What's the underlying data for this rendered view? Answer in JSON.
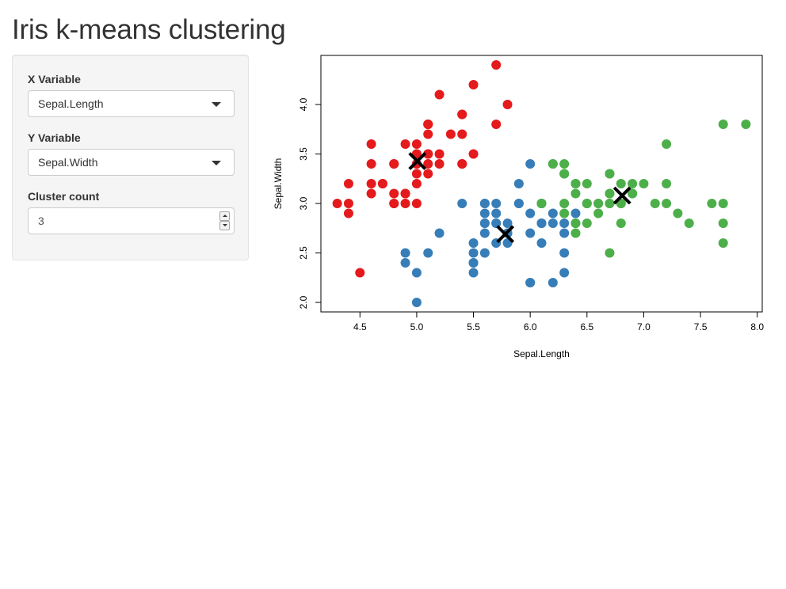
{
  "app": {
    "title": "Iris k-means clustering"
  },
  "sidebar": {
    "x_variable": {
      "label": "X Variable",
      "selected": "Sepal.Length"
    },
    "y_variable": {
      "label": "Y Variable",
      "selected": "Sepal.Width"
    },
    "cluster_count": {
      "label": "Cluster count",
      "value": "3"
    }
  },
  "colors": {
    "cluster_1": "#E41A1C",
    "cluster_2": "#377EB8",
    "cluster_3": "#4DAF4A",
    "centers": "#000000"
  },
  "chart_data": {
    "type": "scatter",
    "title": "",
    "xlabel": "Sepal.Length",
    "ylabel": "Sepal.Width",
    "xlim": [
      4.3,
      7.9
    ],
    "ylim": [
      2.0,
      4.4
    ],
    "x_ticks": [
      4.5,
      5.0,
      5.5,
      6.0,
      6.5,
      7.0,
      7.5,
      8.0
    ],
    "x_tick_labels": [
      "4.5",
      "5.0",
      "5.5",
      "6.0",
      "6.5",
      "7.0",
      "7.5",
      "8.0"
    ],
    "y_ticks": [
      2.0,
      2.5,
      3.0,
      3.5,
      4.0
    ],
    "y_tick_labels": [
      "2.0",
      "2.5",
      "3.0",
      "3.5",
      "4.0"
    ],
    "grid": false,
    "legend": "none",
    "series": [
      {
        "color": "#E41A1C",
        "points": [
          [
            5.1,
            3.5
          ],
          [
            4.9,
            3.0
          ],
          [
            4.7,
            3.2
          ],
          [
            4.6,
            3.1
          ],
          [
            5.0,
            3.6
          ],
          [
            5.4,
            3.9
          ],
          [
            4.6,
            3.4
          ],
          [
            5.0,
            3.4
          ],
          [
            4.4,
            2.9
          ],
          [
            4.9,
            3.1
          ],
          [
            5.4,
            3.7
          ],
          [
            4.8,
            3.4
          ],
          [
            4.8,
            3.0
          ],
          [
            4.3,
            3.0
          ],
          [
            5.8,
            4.0
          ],
          [
            5.7,
            4.4
          ],
          [
            5.4,
            3.9
          ],
          [
            5.1,
            3.5
          ],
          [
            5.7,
            3.8
          ],
          [
            5.1,
            3.8
          ],
          [
            5.4,
            3.4
          ],
          [
            5.1,
            3.7
          ],
          [
            4.6,
            3.6
          ],
          [
            5.1,
            3.3
          ],
          [
            4.8,
            3.4
          ],
          [
            5.0,
            3.0
          ],
          [
            5.0,
            3.4
          ],
          [
            5.2,
            3.5
          ],
          [
            5.2,
            3.4
          ],
          [
            4.7,
            3.2
          ],
          [
            4.8,
            3.1
          ],
          [
            5.4,
            3.4
          ],
          [
            5.2,
            4.1
          ],
          [
            5.5,
            4.2
          ],
          [
            4.9,
            3.1
          ],
          [
            5.0,
            3.2
          ],
          [
            5.5,
            3.5
          ],
          [
            4.9,
            3.6
          ],
          [
            4.4,
            3.0
          ],
          [
            5.1,
            3.4
          ],
          [
            5.0,
            3.5
          ],
          [
            4.5,
            2.3
          ],
          [
            4.4,
            3.2
          ],
          [
            5.0,
            3.5
          ],
          [
            5.1,
            3.8
          ],
          [
            4.8,
            3.0
          ],
          [
            5.1,
            3.8
          ],
          [
            4.6,
            3.2
          ],
          [
            5.3,
            3.7
          ],
          [
            5.0,
            3.3
          ]
        ]
      },
      {
        "color": "#377EB8",
        "points": [
          [
            5.5,
            2.3
          ],
          [
            5.7,
            2.8
          ],
          [
            4.9,
            2.4
          ],
          [
            5.2,
            2.7
          ],
          [
            5.0,
            2.0
          ],
          [
            5.9,
            3.0
          ],
          [
            6.0,
            2.2
          ],
          [
            5.6,
            2.9
          ],
          [
            5.6,
            3.0
          ],
          [
            5.8,
            2.7
          ],
          [
            6.2,
            2.2
          ],
          [
            5.6,
            2.5
          ],
          [
            5.9,
            3.2
          ],
          [
            6.1,
            2.8
          ],
          [
            6.3,
            2.5
          ],
          [
            6.1,
            2.8
          ],
          [
            6.4,
            2.9
          ],
          [
            6.0,
            2.9
          ],
          [
            5.7,
            2.6
          ],
          [
            5.5,
            2.4
          ],
          [
            5.5,
            2.4
          ],
          [
            5.8,
            2.7
          ],
          [
            6.0,
            2.7
          ],
          [
            5.4,
            3.0
          ],
          [
            6.0,
            3.4
          ],
          [
            6.3,
            2.3
          ],
          [
            5.6,
            3.0
          ],
          [
            5.5,
            2.5
          ],
          [
            5.5,
            2.6
          ],
          [
            6.1,
            3.0
          ],
          [
            5.8,
            2.6
          ],
          [
            5.0,
            2.3
          ],
          [
            5.6,
            2.7
          ],
          [
            5.7,
            3.0
          ],
          [
            5.7,
            2.9
          ],
          [
            6.2,
            2.9
          ],
          [
            5.1,
            2.5
          ],
          [
            5.7,
            2.8
          ],
          [
            5.8,
            2.7
          ],
          [
            4.9,
            2.5
          ],
          [
            6.0,
            2.2
          ],
          [
            6.3,
            2.7
          ],
          [
            6.2,
            2.8
          ],
          [
            6.1,
            3.0
          ],
          [
            5.6,
            2.8
          ],
          [
            5.8,
            2.8
          ],
          [
            6.3,
            2.8
          ],
          [
            6.1,
            2.6
          ],
          [
            5.9,
            3.0
          ],
          [
            5.6,
            2.8
          ]
        ]
      },
      {
        "color": "#4DAF4A",
        "points": [
          [
            7.0,
            3.2
          ],
          [
            6.4,
            3.2
          ],
          [
            6.9,
            3.1
          ],
          [
            6.5,
            2.8
          ],
          [
            6.3,
            3.3
          ],
          [
            6.6,
            2.9
          ],
          [
            6.7,
            3.1
          ],
          [
            6.6,
            3.0
          ],
          [
            6.8,
            2.8
          ],
          [
            6.7,
            3.0
          ],
          [
            6.3,
            3.3
          ],
          [
            7.1,
            3.0
          ],
          [
            6.3,
            2.9
          ],
          [
            6.5,
            3.0
          ],
          [
            7.6,
            3.0
          ],
          [
            7.3,
            2.9
          ],
          [
            6.7,
            2.5
          ],
          [
            7.2,
            3.6
          ],
          [
            6.5,
            3.2
          ],
          [
            6.4,
            2.7
          ],
          [
            6.8,
            3.0
          ],
          [
            6.4,
            3.2
          ],
          [
            6.5,
            3.0
          ],
          [
            7.7,
            3.8
          ],
          [
            7.7,
            2.6
          ],
          [
            6.9,
            3.2
          ],
          [
            7.7,
            2.8
          ],
          [
            6.7,
            3.3
          ],
          [
            7.2,
            3.2
          ],
          [
            6.2,
            3.4
          ],
          [
            6.4,
            2.8
          ],
          [
            7.2,
            3.0
          ],
          [
            7.4,
            2.8
          ],
          [
            7.9,
            3.8
          ],
          [
            6.4,
            2.8
          ],
          [
            7.7,
            3.0
          ],
          [
            6.3,
            3.4
          ],
          [
            6.4,
            3.1
          ],
          [
            6.9,
            3.1
          ],
          [
            6.7,
            3.1
          ],
          [
            6.9,
            3.1
          ],
          [
            6.8,
            3.2
          ],
          [
            6.7,
            3.3
          ],
          [
            6.7,
            3.0
          ],
          [
            6.5,
            3.0
          ],
          [
            6.2,
            3.4
          ],
          [
            6.6,
            3.0
          ],
          [
            6.8,
            3.0
          ],
          [
            6.3,
            3.0
          ],
          [
            6.1,
            3.0
          ]
        ]
      }
    ],
    "centers": [
      [
        5.006,
        3.428
      ],
      [
        5.78,
        2.69
      ],
      [
        6.81,
        3.08
      ]
    ]
  }
}
